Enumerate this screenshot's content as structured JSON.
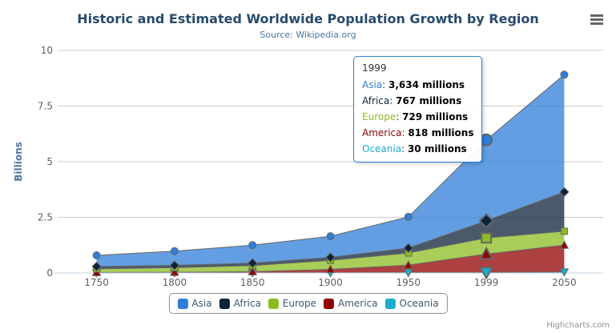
{
  "header": {
    "title": "Historic and Estimated Worldwide Population Growth by Region",
    "subtitle": "Source: Wikipedia.org"
  },
  "toolbar": {
    "menu_icon": "hamburger-menu"
  },
  "credits": {
    "label": "Highcharts.com"
  },
  "tooltip": {
    "header": "1999",
    "rows": [
      {
        "label": "Asia",
        "value": "3,634 millions",
        "color": "#2f7ed8"
      },
      {
        "label": "Africa",
        "value": "767 millions",
        "color": "#0d233a"
      },
      {
        "label": "Europe",
        "value": "729 millions",
        "color": "#8bbc21"
      },
      {
        "label": "America",
        "value": "818 millions",
        "color": "#910000"
      },
      {
        "label": "Oceania",
        "value": "30 millions",
        "color": "#1aadce"
      }
    ]
  },
  "chart_data": {
    "type": "area",
    "stacking": "normal",
    "title": "Historic and Estimated Worldwide Population Growth by Region",
    "subtitle": "Source: Wikipedia.org",
    "xlabel": "",
    "ylabel": "Billions",
    "unit": "millions",
    "ylim": [
      0,
      10
    ],
    "yticks": [
      "0",
      "2.5",
      "5",
      "7.5",
      "10"
    ],
    "grid": true,
    "legend_position": "bottom",
    "categories": [
      "1750",
      "1800",
      "1850",
      "1900",
      "1950",
      "1999",
      "2050"
    ],
    "series": [
      {
        "name": "Asia",
        "color": "#2f7ed8",
        "marker": "circle",
        "values": [
          502,
          635,
          809,
          947,
          1402,
          3634,
          5268
        ]
      },
      {
        "name": "Africa",
        "color": "#0d233a",
        "marker": "diamond",
        "values": [
          106,
          107,
          111,
          133,
          221,
          767,
          1766
        ]
      },
      {
        "name": "Europe",
        "color": "#8bbc21",
        "marker": "square",
        "values": [
          163,
          203,
          276,
          408,
          547,
          729,
          628
        ]
      },
      {
        "name": "America",
        "color": "#910000",
        "marker": "triangle",
        "values": [
          18,
          31,
          54,
          156,
          339,
          818,
          1201
        ]
      },
      {
        "name": "Oceania",
        "color": "#1aadce",
        "marker": "triangle-down",
        "values": [
          2,
          2,
          2,
          6,
          13,
          30,
          46
        ]
      }
    ],
    "hover_category": "1999",
    "hover_index": 5,
    "styles": {
      "line_color": "#666666",
      "grid_color": "#cccccc",
      "axis_line_color": "#c0d0e0",
      "label_color": "#606060",
      "title_color": "#274b6d",
      "subtitle_color": "#4d759e",
      "ylabel_color": "#4d759e",
      "legend_text_color": "#3e576f",
      "tooltip_border_color": "#2f7ed8",
      "credits_color": "#909090",
      "fill_opacity": 0.75
    }
  }
}
